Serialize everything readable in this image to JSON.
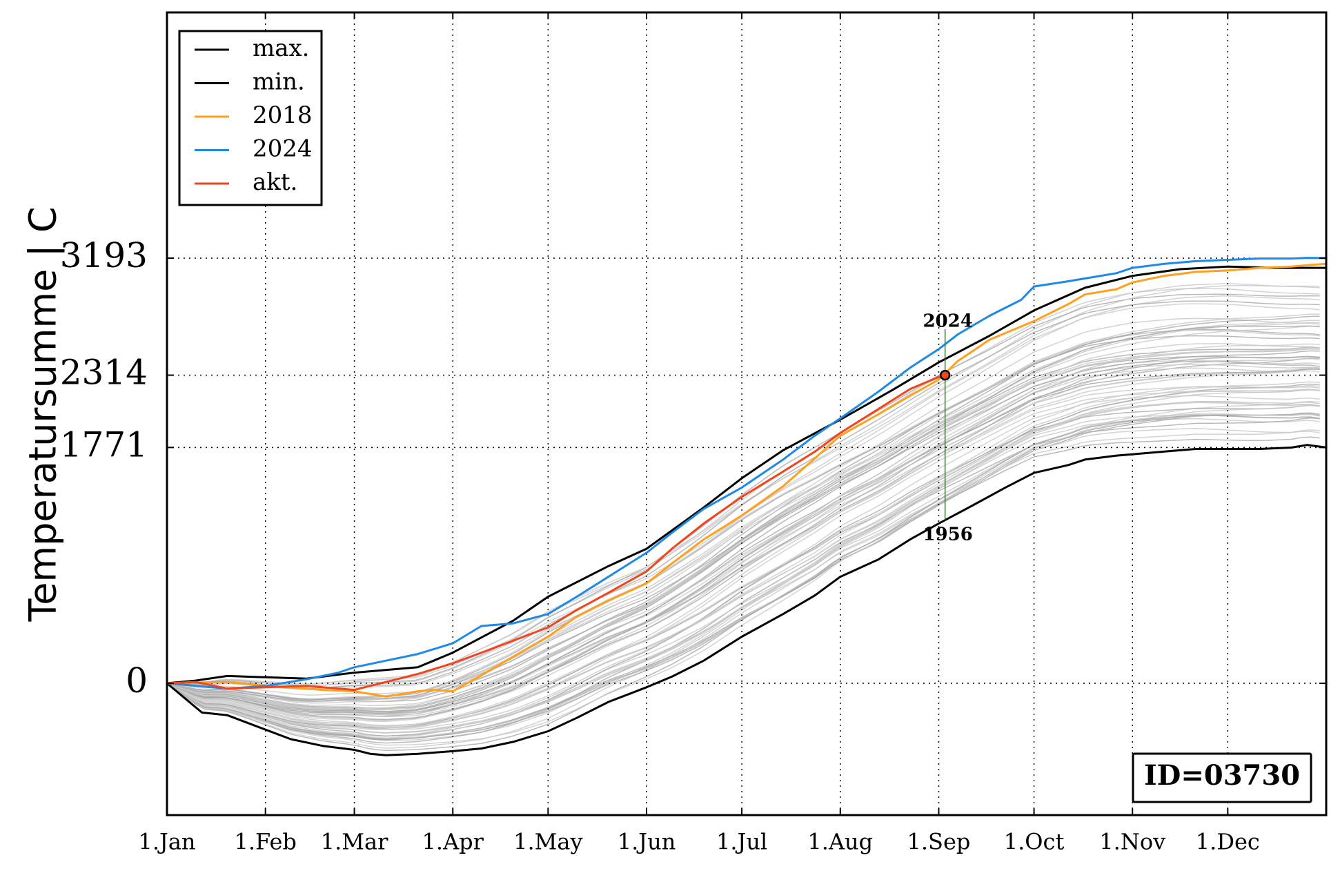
{
  "chart_data": {
    "type": "line",
    "title": "",
    "xlabel": "",
    "ylabel": "Temperatursumme | C",
    "x_ticks": [
      {
        "label": "1.Jan",
        "day": 1
      },
      {
        "label": "1.Feb",
        "day": 32
      },
      {
        "label": "1.Mar",
        "day": 60
      },
      {
        "label": "1.Apr",
        "day": 91
      },
      {
        "label": "1.May",
        "day": 121
      },
      {
        "label": "1.Jun",
        "day": 152
      },
      {
        "label": "1.Jul",
        "day": 182
      },
      {
        "label": "1.Aug",
        "day": 213
      },
      {
        "label": "1.Sep",
        "day": 244
      },
      {
        "label": "1.Oct",
        "day": 274
      },
      {
        "label": "1.Nov",
        "day": 305
      },
      {
        "label": "1.Dec",
        "day": 335
      }
    ],
    "y_ticks": [
      0,
      1771,
      2314,
      3193
    ],
    "xlim": [
      1,
      366
    ],
    "ylim": [
      -1000,
      5000
    ],
    "grid": true,
    "legend_position": "top-left",
    "series": [
      {
        "name": "max.",
        "color": "#000000",
        "x": [
          1,
          10,
          20,
          32,
          45,
          60,
          80,
          91,
          110,
          121,
          140,
          152,
          170,
          182,
          195,
          213,
          230,
          244,
          260,
          274,
          290,
          305,
          320,
          335,
          350,
          366
        ],
        "y": [
          0,
          20,
          55,
          45,
          35,
          80,
          120,
          230,
          470,
          650,
          880,
          1010,
          1320,
          1540,
          1750,
          1980,
          2210,
          2410,
          2610,
          2800,
          2970,
          3060,
          3110,
          3130,
          3120,
          3120
        ]
      },
      {
        "name": "min.",
        "color": "#000000",
        "x": [
          1,
          6,
          12,
          20,
          30,
          40,
          50,
          60,
          65,
          70,
          80,
          91,
          100,
          110,
          121,
          130,
          140,
          152,
          160,
          170,
          182,
          195,
          205,
          213,
          225,
          235,
          244,
          255,
          265,
          274,
          285,
          290,
          300,
          305,
          315,
          325,
          330,
          335,
          345,
          355,
          360,
          366
        ],
        "y": [
          0,
          -100,
          -220,
          -240,
          -330,
          -420,
          -470,
          -500,
          -530,
          -540,
          -530,
          -510,
          -490,
          -440,
          -360,
          -260,
          -140,
          -30,
          50,
          170,
          350,
          520,
          660,
          800,
          930,
          1080,
          1200,
          1340,
          1470,
          1580,
          1640,
          1680,
          1710,
          1720,
          1740,
          1760,
          1760,
          1760,
          1760,
          1770,
          1790,
          1771
        ]
      },
      {
        "name": "2018",
        "color": "#ffa01e",
        "x": [
          1,
          20,
          32,
          45,
          50,
          60,
          70,
          80,
          85,
          91,
          100,
          110,
          121,
          130,
          140,
          152,
          160,
          170,
          182,
          195,
          205,
          213,
          225,
          235,
          244,
          250,
          260,
          274,
          285,
          290,
          300,
          305,
          315,
          325,
          335,
          345,
          355,
          360,
          366
        ],
        "y": [
          0,
          10,
          -20,
          -40,
          -50,
          -60,
          -100,
          -60,
          -50,
          -60,
          60,
          200,
          350,
          500,
          620,
          750,
          900,
          1080,
          1260,
          1480,
          1690,
          1860,
          2020,
          2160,
          2280,
          2420,
          2580,
          2720,
          2850,
          2920,
          2960,
          3010,
          3060,
          3090,
          3100,
          3120,
          3130,
          3140,
          3150
        ]
      },
      {
        "name": "2024",
        "color": "#1e8ae6",
        "x": [
          1,
          20,
          32,
          45,
          55,
          60,
          70,
          80,
          91,
          100,
          110,
          121,
          130,
          140,
          152,
          160,
          170,
          182,
          195,
          205,
          213,
          225,
          235,
          244,
          250,
          260,
          270,
          274,
          285,
          290,
          300,
          305,
          315,
          325,
          335,
          345,
          355,
          360,
          366
        ],
        "y": [
          0,
          -40,
          -20,
          30,
          80,
          120,
          170,
          220,
          300,
          430,
          450,
          520,
          650,
          800,
          980,
          1130,
          1310,
          1470,
          1680,
          1860,
          1990,
          2190,
          2370,
          2510,
          2620,
          2760,
          2880,
          2980,
          3020,
          3040,
          3080,
          3120,
          3150,
          3170,
          3180,
          3190,
          3190,
          3195,
          3193
        ]
      },
      {
        "name": "akt.",
        "color": "#f0461e",
        "x": [
          1,
          10,
          20,
          32,
          45,
          50,
          60,
          70,
          80,
          91,
          100,
          110,
          121,
          130,
          140,
          152,
          160,
          170,
          182,
          195,
          205,
          213,
          225,
          235,
          244,
          246
        ],
        "y": [
          0,
          10,
          -40,
          -30,
          -20,
          -30,
          -50,
          10,
          70,
          150,
          230,
          320,
          420,
          550,
          680,
          840,
          1010,
          1200,
          1400,
          1590,
          1740,
          1880,
          2060,
          2210,
          2300,
          2314
        ]
      }
    ],
    "annotation": {
      "day": 246,
      "value": 2314,
      "upper_label": "2024",
      "lower_label": "1956",
      "marker_color": "#f0461e",
      "line_color": "#1e8a1e"
    }
  },
  "id_label": "ID=03730"
}
